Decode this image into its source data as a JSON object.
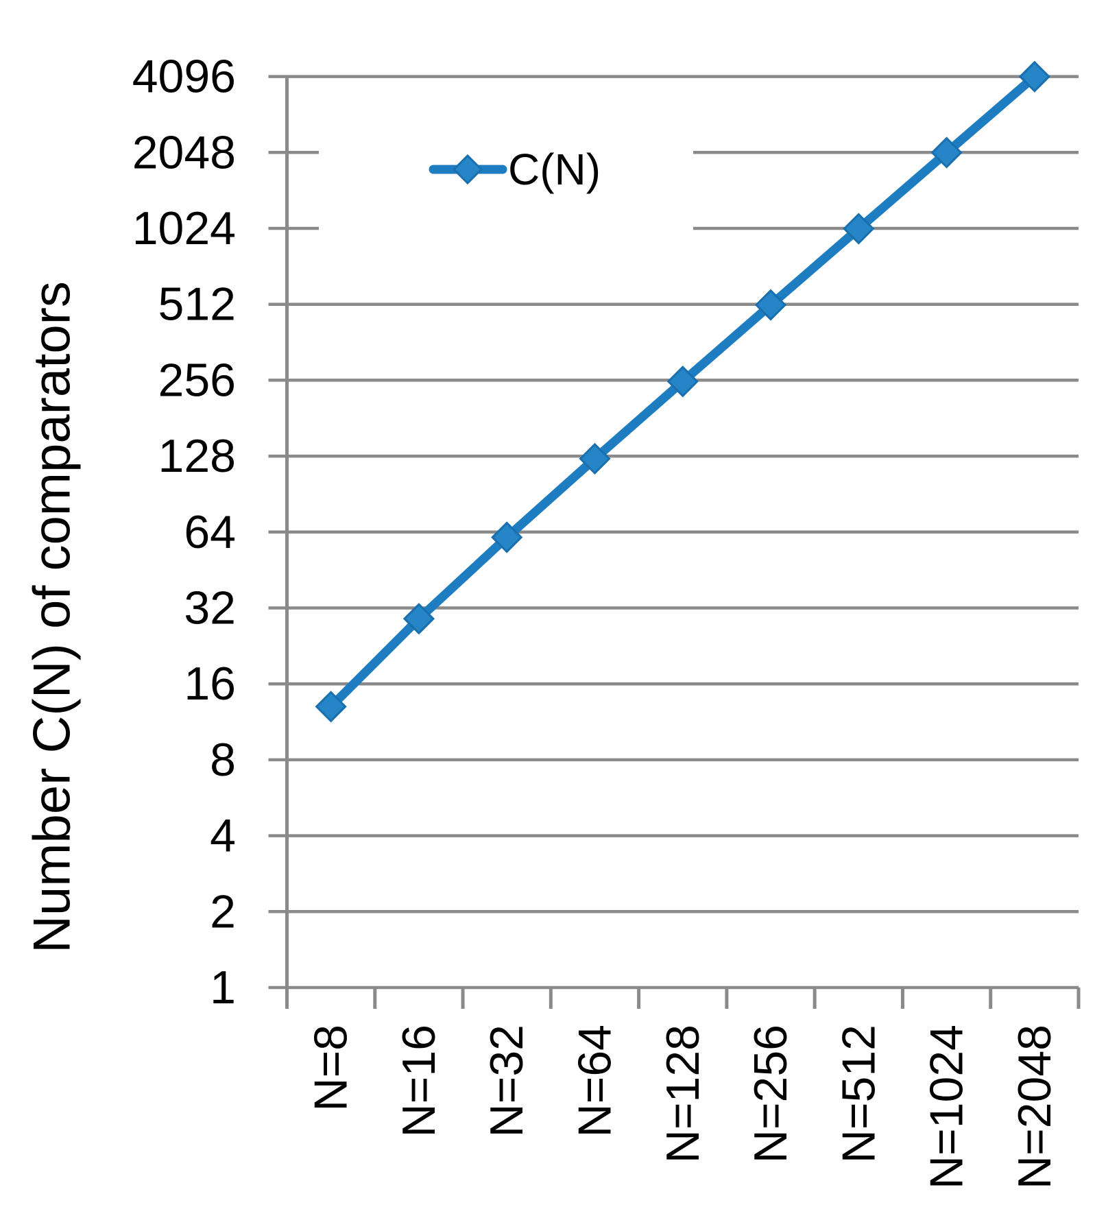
{
  "chart_data": {
    "type": "line",
    "title": "",
    "xlabel": "",
    "ylabel": "Number C(N) of comparators",
    "categories": [
      "N=8",
      "N=16",
      "N=32",
      "N=64",
      "N=128",
      "N=256",
      "N=512",
      "N=1024",
      "N=2048"
    ],
    "series": [
      {
        "name": "C(N)",
        "values": [
          13,
          29,
          61,
          125,
          253,
          509,
          1021,
          2045,
          4093
        ]
      }
    ],
    "y_scale": "log2",
    "y_ticks": [
      1,
      2,
      4,
      8,
      16,
      32,
      64,
      128,
      256,
      512,
      1024,
      2048,
      4096
    ],
    "ylim": [
      1,
      4096
    ],
    "grid": true,
    "legend_position": "inside-top-left",
    "marker": "diamond",
    "colors": {
      "series_line": "#1E7DC0",
      "marker_fill": "#2585C7",
      "marker_stroke": "#1A6FAE",
      "grid": "#8A8A8A",
      "text": "#000000",
      "background": "#FFFFFF"
    }
  }
}
